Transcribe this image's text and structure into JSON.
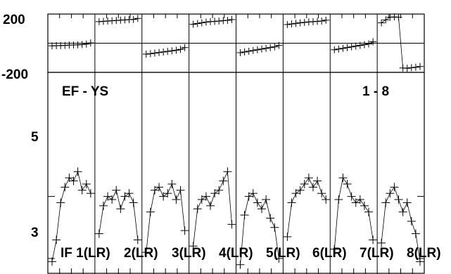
{
  "chart_data": [
    {
      "panel": "phase",
      "type": "scatter",
      "y_ticks": [
        "200",
        "-200"
      ],
      "ylim": [
        -200,
        200
      ],
      "series": [
        {
          "segment": "IF 1(LR)",
          "values": [
            -18,
            -17,
            -16,
            -15,
            -13,
            -12,
            -11,
            -9,
            -6,
            2
          ]
        },
        {
          "segment": "IF 2(LR)",
          "values": [
            148,
            150,
            152,
            154,
            156,
            158,
            160,
            162,
            163,
            170
          ]
        },
        {
          "segment": "IF 3(LR)",
          "values": [
            -75,
            -72,
            -68,
            -64,
            -60,
            -56,
            -52,
            -48,
            -42,
            -30
          ]
        },
        {
          "segment": "IF 4(LR)",
          "values": [
            130,
            135,
            140,
            145,
            148,
            150,
            152,
            155,
            157,
            162
          ]
        },
        {
          "segment": "IF 5(LR)",
          "values": [
            -65,
            -60,
            -55,
            -50,
            -45,
            -40,
            -35,
            -30,
            -25,
            -15
          ]
        },
        {
          "segment": "IF 6(LR)",
          "values": [
            128,
            132,
            136,
            140,
            143,
            146,
            148,
            150,
            152,
            158
          ]
        },
        {
          "segment": "IF 7(LR)",
          "values": [
            -45,
            -40,
            -35,
            -30,
            -25,
            -20,
            -15,
            -10,
            -5,
            10
          ]
        },
        {
          "segment": "IF 8(LR)",
          "values": [
            140,
            160,
            178,
            180,
            178,
            -170,
            -172,
            -168,
            -165,
            -160
          ]
        }
      ]
    },
    {
      "panel": "amplitude",
      "type": "scatter",
      "y_ticks": [
        "5",
        "3"
      ],
      "ylim": [
        2.5,
        9
      ],
      "annotations": [
        "EF - YS",
        "1 - 8"
      ],
      "series": [
        {
          "segment": "IF 1(LR)",
          "values": [
            2.9,
            3.6,
            4.8,
            5.3,
            5.6,
            5.5,
            5.8,
            5.2,
            5.4,
            5.1
          ]
        },
        {
          "segment": "IF 2(LR)",
          "values": [
            3.8,
            4.7,
            5.0,
            4.9,
            5.2,
            4.6,
            5.0,
            5.1,
            4.8,
            3.6
          ]
        },
        {
          "segment": "IF 3(LR)",
          "values": [
            3.2,
            4.5,
            5.2,
            5.3,
            5.0,
            5.1,
            5.4,
            4.9,
            5.2,
            3.9
          ]
        },
        {
          "segment": "IF 4(LR)",
          "values": [
            3.4,
            4.6,
            4.9,
            5.0,
            4.7,
            5.1,
            5.2,
            5.5,
            5.8,
            4.1
          ]
        },
        {
          "segment": "IF 5(LR)",
          "values": [
            2.8,
            4.4,
            5.0,
            5.1,
            4.8,
            4.6,
            4.9,
            4.3,
            4.0,
            3.0
          ]
        },
        {
          "segment": "IF 6(LR)",
          "values": [
            3.7,
            4.8,
            5.1,
            5.2,
            5.4,
            5.6,
            5.3,
            5.5,
            5.1,
            4.9
          ]
        },
        {
          "segment": "IF 7(LR)",
          "values": [
            3.3,
            4.9,
            5.6,
            5.4,
            5.0,
            4.8,
            4.9,
            4.7,
            4.5,
            3.6
          ]
        },
        {
          "segment": "IF 8(LR)",
          "values": [
            3.5,
            4.8,
            5.1,
            5.3,
            4.9,
            4.5,
            4.8,
            4.2,
            3.8,
            2.9
          ]
        }
      ]
    }
  ],
  "bottom_labels": [
    "IF 1(LR)",
    "2(LR)",
    "3(LR)",
    "4(LR)",
    "5(LR)",
    "6(LR)",
    "7(LR)",
    "8(LR)"
  ]
}
